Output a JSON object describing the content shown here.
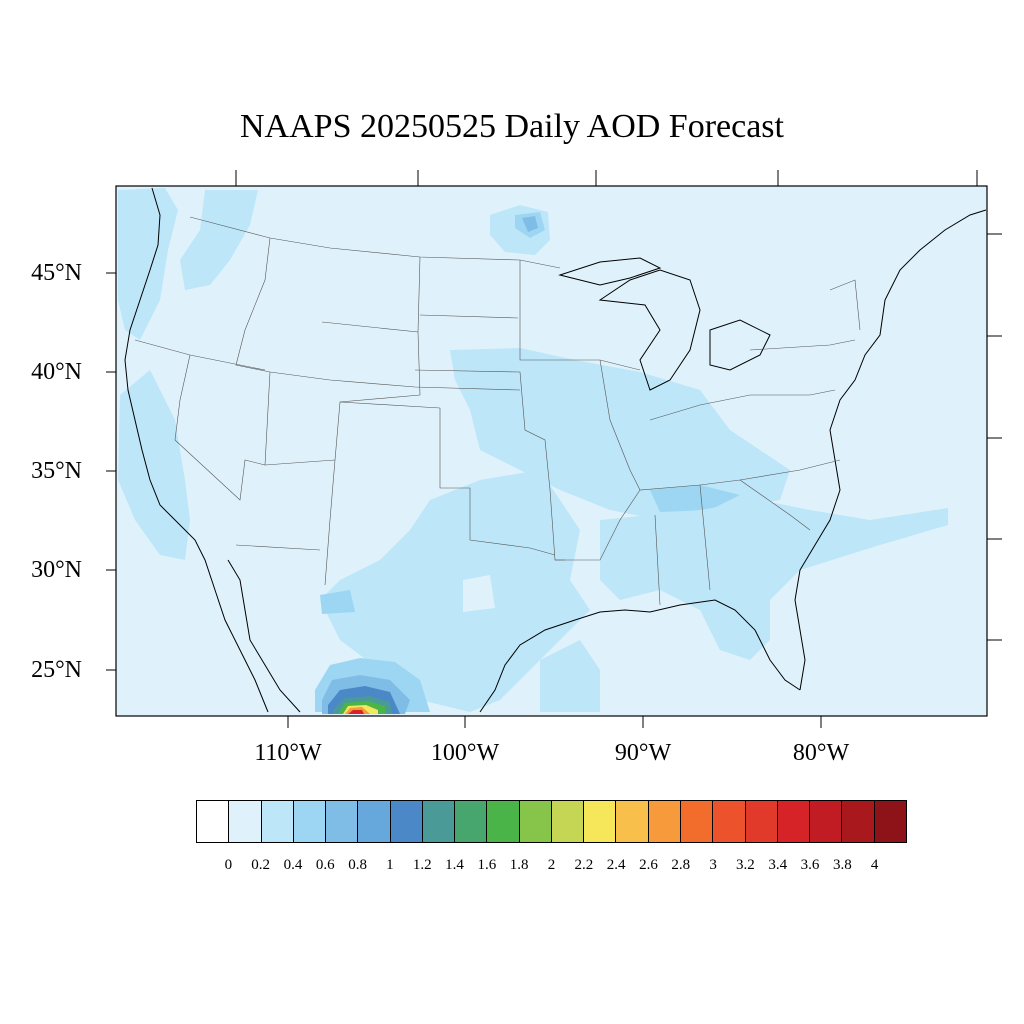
{
  "title": "NAAPS 20250525 Daily AOD Forecast",
  "lat_labels": [
    "45°N",
    "40°N",
    "35°N",
    "30°N",
    "25°N"
  ],
  "lon_labels": [
    "110°W",
    "100°W",
    "90°W",
    "80°W"
  ],
  "colorbar": {
    "colors": [
      "#ffffff",
      "#dff2fb",
      "#bde6f8",
      "#9dd6f3",
      "#7fbde6",
      "#66a8db",
      "#4a88c8",
      "#4a9a98",
      "#46a66d",
      "#4bb448",
      "#86c44a",
      "#c5d655",
      "#f6e65a",
      "#f9bf4b",
      "#f79a3c",
      "#f26c2b",
      "#ec522b",
      "#e23a2a",
      "#d62328",
      "#c11c24",
      "#a8181c",
      "#8e1318"
    ],
    "labels": [
      "0",
      "0.2",
      "0.4",
      "0.6",
      "0.8",
      "1",
      "1.2",
      "1.4",
      "1.6",
      "1.8",
      "2",
      "2.2",
      "2.4",
      "2.6",
      "2.8",
      "3",
      "3.2",
      "3.4",
      "3.6",
      "3.8",
      "4"
    ]
  }
}
